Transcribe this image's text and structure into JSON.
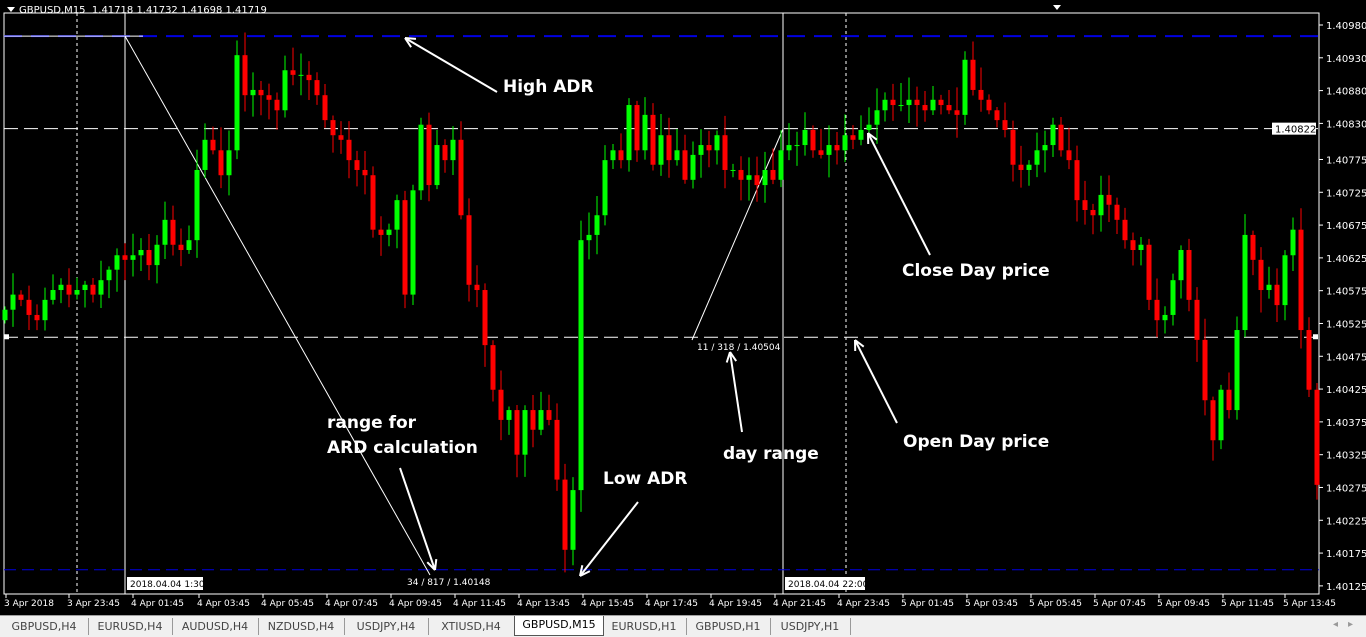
{
  "header": {
    "symbol": "GBPUSD,M15",
    "ohlc": "1.41718 1.41732 1.41698 1.41719"
  },
  "colors": {
    "bull": "#00ff00",
    "bear": "#ff0000",
    "adr_line": "#0000e0",
    "text": "#ffffff"
  },
  "price_axis": {
    "ticks": [
      "1.40980",
      "1.40930",
      "1.40880",
      "1.40830",
      "1.40775",
      "1.40725",
      "1.40675",
      "1.40625",
      "1.40575",
      "1.40525",
      "1.40475",
      "1.40425",
      "1.40375",
      "1.40325",
      "1.40275",
      "1.40225",
      "1.40175",
      "1.40125"
    ],
    "current_price": "1.40822"
  },
  "time_axis": {
    "labels": [
      "3 Apr 2018",
      "3 Apr 23:45",
      "4 Apr 01:45",
      "4 Apr 03:45",
      "4 Apr 05:45",
      "4 Apr 07:45",
      "4 Apr 09:45",
      "4 Apr 11:45",
      "4 Apr 13:45",
      "4 Apr 15:45",
      "4 Apr 17:45",
      "4 Apr 19:45",
      "4 Apr 21:45",
      "4 Apr 23:45",
      "5 Apr 01:45",
      "5 Apr 03:45",
      "5 Apr 05:45",
      "5 Apr 07:45",
      "5 Apr 09:45",
      "5 Apr 11:45",
      "5 Apr 13:45"
    ],
    "crosshair_labels": [
      "2018.04.04 1:30",
      "2018.04.04 22:00"
    ]
  },
  "levels": {
    "high_adr": 1.40963,
    "close_day": 1.40822,
    "open_day": 1.40504,
    "low_adr": 1.40148
  },
  "level_labels": {
    "open_day": "11 / 318 / 1.40504",
    "low_adr": "34 / 817 / 1.40148"
  },
  "annotations": {
    "high_adr": "High ADR",
    "range_line1": "range for",
    "range_line2": "ARD calculation",
    "low_adr": "Low ADR",
    "day_range": "day range",
    "close_day": "Close Day price",
    "open_day": "Open Day price"
  },
  "candles": {
    "first_open": 1.4053,
    "closes": [
      1.40546,
      1.40569,
      1.40561,
      1.40538,
      1.4053,
      1.40561,
      1.40576,
      1.40584,
      1.40569,
      1.40576,
      1.40584,
      1.40569,
      1.40591,
      1.40607,
      1.40629,
      1.40622,
      1.40629,
      1.40637,
      1.40614,
      1.40645,
      1.40683,
      1.40645,
      1.40637,
      1.40652,
      1.40759,
      1.40805,
      1.40789,
      1.40751,
      1.40789,
      1.40934,
      1.40873,
      1.40881,
      1.40873,
      1.40866,
      1.4085,
      1.40911,
      1.40904,
      1.40904,
      1.40896,
      1.40873,
      1.40835,
      1.40812,
      1.40805,
      1.40774,
      1.40759,
      1.40751,
      1.40668,
      1.4066,
      1.40668,
      1.40713,
      1.40569,
      1.40728,
      1.40828,
      1.40736,
      1.40797,
      1.40774,
      1.40805,
      1.4069,
      1.40584,
      1.40576,
      1.40492,
      1.40424,
      1.40378,
      1.40393,
      1.40325,
      1.40393,
      1.40363,
      1.40393,
      1.40378,
      1.40287,
      1.4018,
      1.40271,
      1.40652,
      1.4066,
      1.4069,
      1.40774,
      1.40789,
      1.40774,
      1.40858,
      1.40789,
      1.40843,
      1.40767,
      1.40812,
      1.40774,
      1.40789,
      1.40744,
      1.40782,
      1.40797,
      1.40789,
      1.40812,
      1.40759,
      1.40759,
      1.40744,
      1.40751,
      1.40736,
      1.40759,
      1.40744,
      1.40789,
      1.40797,
      1.40797,
      1.4082,
      1.40789,
      1.40782,
      1.40797,
      1.40789,
      1.40812,
      1.40805,
      1.4082,
      1.40828,
      1.4085,
      1.40866,
      1.40858,
      1.40858,
      1.40866,
      1.40858,
      1.4085,
      1.40866,
      1.40858,
      1.4085,
      1.40843,
      1.40927,
      1.40881,
      1.40866,
      1.4085,
      1.40835,
      1.4082,
      1.40767,
      1.40759,
      1.40767,
      1.40789,
      1.40797,
      1.40828,
      1.40789,
      1.40774,
      1.40713,
      1.40698,
      1.4069,
      1.40721,
      1.40706,
      1.40683,
      1.40652,
      1.40637,
      1.40645,
      1.40561,
      1.4053,
      1.40538,
      1.40591,
      1.40637,
      1.40561,
      1.405,
      1.40408,
      1.40347,
      1.40424,
      1.40393,
      1.40515,
      1.4066,
      1.40622,
      1.40576,
      1.40584,
      1.40553,
      1.40629,
      1.40668,
      1.40515,
      1.40424,
      1.40279
    ]
  },
  "tabs": [
    {
      "label": "GBPUSD,H4"
    },
    {
      "label": "EURUSD,H4"
    },
    {
      "label": "AUDUSD,H4"
    },
    {
      "label": "NZDUSD,H4"
    },
    {
      "label": "USDJPY,H4"
    },
    {
      "label": "XTIUSD,H4"
    },
    {
      "label": "GBPUSD,M15",
      "active": true
    },
    {
      "label": "EURUSD,H1"
    },
    {
      "label": "GBPUSD,H1"
    },
    {
      "label": "USDJPY,H1"
    }
  ]
}
